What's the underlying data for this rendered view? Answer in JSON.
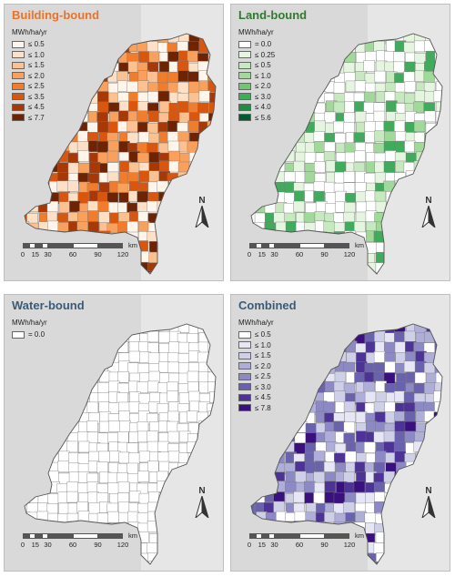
{
  "panels": [
    {
      "title": "Building-bound",
      "title_color": "#e8732a",
      "unit": "MWh/ha/yr",
      "legend": [
        {
          "label": "≤ 0.5",
          "color": "#fff5eb"
        },
        {
          "label": "≤ 1.0",
          "color": "#fde0c5"
        },
        {
          "label": "≤ 1.5",
          "color": "#fcc190"
        },
        {
          "label": "≤ 2.0",
          "color": "#f9a05c"
        },
        {
          "label": "≤ 2.5",
          "color": "#f07c2c"
        },
        {
          "label": "≤ 3.5",
          "color": "#d9560f"
        },
        {
          "label": "≤ 4.5",
          "color": "#a83806"
        },
        {
          "label": "≤ 7.7",
          "color": "#6e2303"
        }
      ],
      "scheme": [
        0,
        1,
        2,
        3,
        4,
        5,
        6,
        7
      ]
    },
    {
      "title": "Land-bound",
      "title_color": "#2e7a2e",
      "unit": "MWh/ha/yr",
      "legend": [
        {
          "label": "= 0.0",
          "color": "#ffffff"
        },
        {
          "label": "≤ 0.25",
          "color": "#e5f5e0"
        },
        {
          "label": "≤ 0.5",
          "color": "#c7e9c0"
        },
        {
          "label": "≤ 1.0",
          "color": "#a1d99b"
        },
        {
          "label": "≤ 2.0",
          "color": "#74c476"
        },
        {
          "label": "≤ 3.0",
          "color": "#41ab5d"
        },
        {
          "label": "≤ 4.0",
          "color": "#238b45"
        },
        {
          "label": "≤ 5.6",
          "color": "#005a32"
        }
      ],
      "scheme": [
        0,
        0,
        0,
        1,
        1,
        2,
        3,
        5
      ]
    },
    {
      "title": "Water-bound",
      "title_color": "#3b5a7a",
      "unit": "MWh/ha/yr",
      "legend": [
        {
          "label": "= 0.0",
          "color": "#ffffff"
        }
      ],
      "scheme": [
        0
      ]
    },
    {
      "title": "Combined",
      "title_color": "#3b5a7a",
      "unit": "MWh/ha/yr",
      "legend": [
        {
          "label": "≤ 0.5",
          "color": "#ffffff"
        },
        {
          "label": "≤ 1.0",
          "color": "#e6e6f4"
        },
        {
          "label": "≤ 1.5",
          "color": "#cfcfe8"
        },
        {
          "label": "≤ 2.0",
          "color": "#aeaed8"
        },
        {
          "label": "≤ 2.5",
          "color": "#8c89c4"
        },
        {
          "label": "≤ 3.0",
          "color": "#6b62ad"
        },
        {
          "label": "≤ 4.5",
          "color": "#4d3396"
        },
        {
          "label": "≤ 7.8",
          "color": "#3a0f7e"
        }
      ],
      "scheme": [
        0,
        1,
        2,
        3,
        4,
        5,
        6,
        7
      ]
    }
  ],
  "north_label": "N",
  "scale": {
    "unit": "km",
    "ticks": [
      "0",
      "15",
      "30",
      "60",
      "90",
      "120"
    ]
  }
}
